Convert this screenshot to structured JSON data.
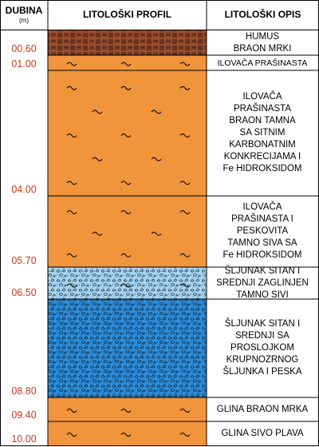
{
  "headers": {
    "depth": "DUBINA",
    "depth_unit": "(m)",
    "profile": "LITOLOŠKI PROFIL",
    "description": "LITOLOŠKI OPIS"
  },
  "colors": {
    "humus": "#9c4c2c",
    "clay": "#f0953c",
    "gravel_light": "#a4d4f4",
    "gravel_dark": "#2a8ede",
    "depth_text": "#c83a16"
  },
  "layers": [
    {
      "depth_label": "00.60",
      "pattern": "humus-pattern",
      "description": "HUMUS\nBRAON MRKI"
    },
    {
      "depth_label": "01.00",
      "pattern": "clay-pattern",
      "description": "ILOVAČA PRAŠINASTA"
    },
    {
      "depth_label": "04.00",
      "pattern": "clay-pattern",
      "description": "ILOVAČA\nPRAŠINASTA\nBRAON  TAMNA\nSA SITNIM\nKARBONATNIM\nKONKRECIJAMA I\nFe HIDROKSIDOM"
    },
    {
      "depth_label": "05.70",
      "pattern": "clay-pattern",
      "description": "ILOVAČA\nPRAŠINASTA I\nPESKOVITA\nTAMNO SIVA SA\nFe HIDROKSIDOM"
    },
    {
      "depth_label": "06.50",
      "pattern": "clayey-gravel-pattern",
      "description": "ŠLJUNAK SITAN I\nSREDNJI ZAGLINJEN\nTAMNO SIVI"
    },
    {
      "depth_label": "08.80",
      "pattern": "gravel-pattern",
      "description": "ŠLJUNAK SITAN I\nSREDNJI SA\nPROSLOJKOM\nKRUPNOZRNOG\nŠLJUNKA I PESKA"
    },
    {
      "depth_label": "09.40",
      "pattern": "clay-pattern",
      "description": "GLINA BRAON MRKA"
    },
    {
      "depth_label": "10.00",
      "pattern": "clay-pattern",
      "description": "GLINA SIVO PLAVA"
    }
  ]
}
